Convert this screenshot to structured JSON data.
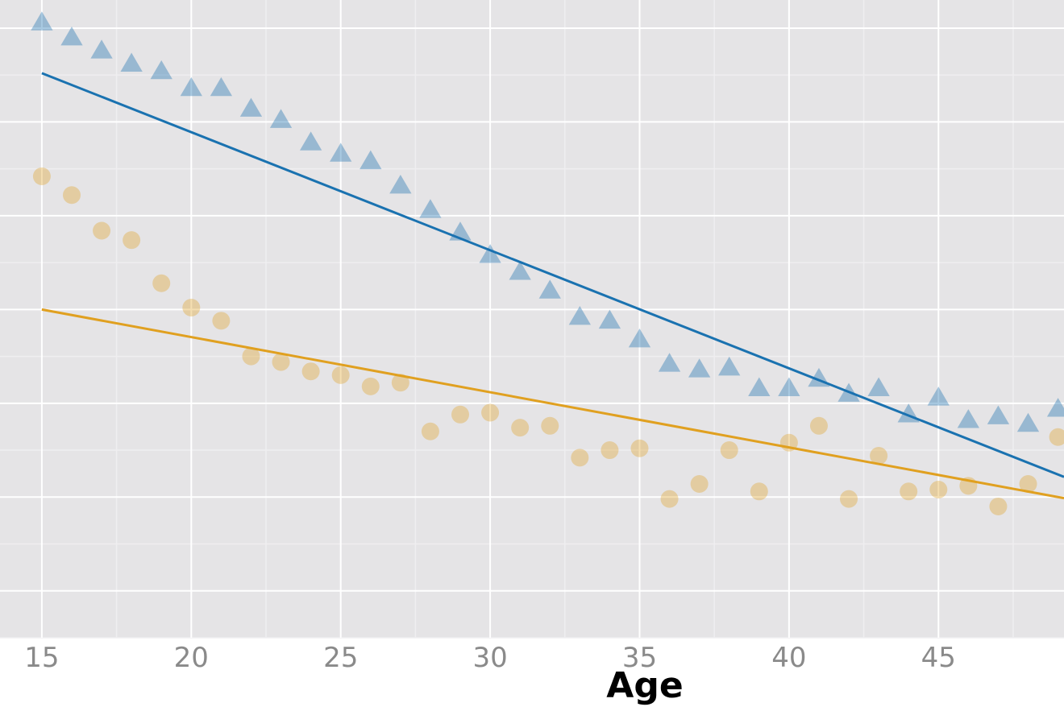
{
  "chart_data": {
    "type": "scatter",
    "title": "",
    "xlabel": "Age",
    "ylabel": "",
    "xlim": [
      13.6,
      49.2
    ],
    "ylim": [
      0,
      34
    ],
    "grid": true,
    "x_ticks": [
      15,
      20,
      25,
      30,
      35,
      40,
      45
    ],
    "x_tick_labels": [
      "15",
      "20",
      "25",
      "30",
      "35",
      "40",
      "45"
    ],
    "x": [
      15,
      16,
      17,
      18,
      19,
      20,
      21,
      22,
      23,
      24,
      25,
      26,
      27,
      28,
      29,
      30,
      31,
      32,
      33,
      34,
      35,
      36,
      37,
      38,
      39,
      40,
      41,
      42,
      43,
      44,
      45,
      46,
      47,
      48,
      49
    ],
    "series": [
      {
        "color": "#1a72b0",
        "marker": "triangle",
        "values": [
          32.8,
          32.0,
          31.3,
          30.6,
          30.2,
          29.3,
          29.3,
          28.2,
          27.6,
          26.4,
          25.8,
          25.4,
          24.1,
          22.8,
          21.6,
          20.4,
          19.5,
          18.5,
          17.1,
          16.9,
          15.9,
          14.6,
          14.3,
          14.4,
          13.3,
          13.3,
          13.8,
          13.0,
          13.3,
          11.9,
          12.8,
          11.6,
          11.8,
          11.4,
          12.2
        ],
        "fit": [
          30.1,
          8.7
        ]
      },
      {
        "color": "#e0a020",
        "marker": "circle",
        "values": [
          24.6,
          23.6,
          21.7,
          21.2,
          18.9,
          17.6,
          16.9,
          15.0,
          14.7,
          14.2,
          14.0,
          13.4,
          13.6,
          11.0,
          11.9,
          12.0,
          11.2,
          11.3,
          9.6,
          10.0,
          10.1,
          7.4,
          8.2,
          10.0,
          7.8,
          10.4,
          11.3,
          7.4,
          9.7,
          7.8,
          7.9,
          8.1,
          7.0,
          8.2,
          10.7
        ],
        "fit": [
          17.5,
          7.5
        ]
      }
    ]
  }
}
